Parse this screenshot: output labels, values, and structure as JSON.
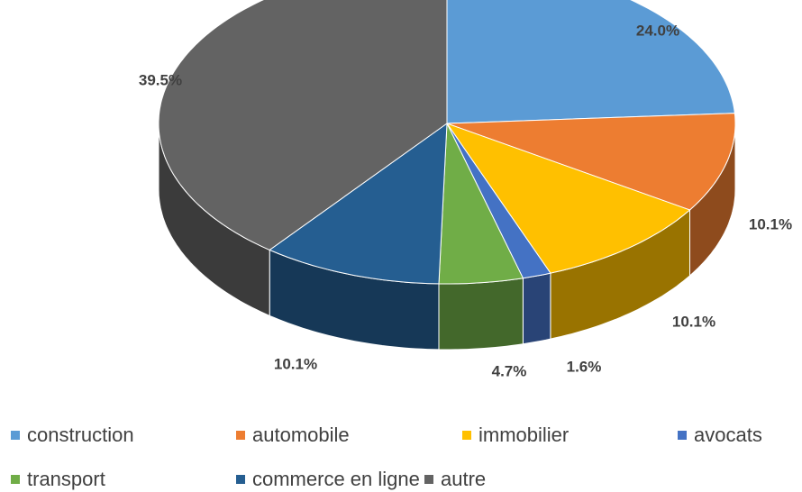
{
  "chart_data": {
    "type": "pie3d",
    "categories": [
      "construction",
      "automobile",
      "immobilier",
      "avocats",
      "transport",
      "commerce en ligne",
      "autre"
    ],
    "values": [
      24.0,
      10.1,
      10.1,
      1.6,
      4.7,
      10.1,
      39.5
    ],
    "value_labels": [
      "24.0%",
      "10.1%",
      "10.1%",
      "1.6%",
      "4.7%",
      "10.1%",
      "39.5%"
    ],
    "colors": [
      "#5b9bd5",
      "#ed7d31",
      "#ffc000",
      "#4472c4",
      "#70ad47",
      "#255e91",
      "#636363"
    ],
    "legend": "bottom"
  }
}
